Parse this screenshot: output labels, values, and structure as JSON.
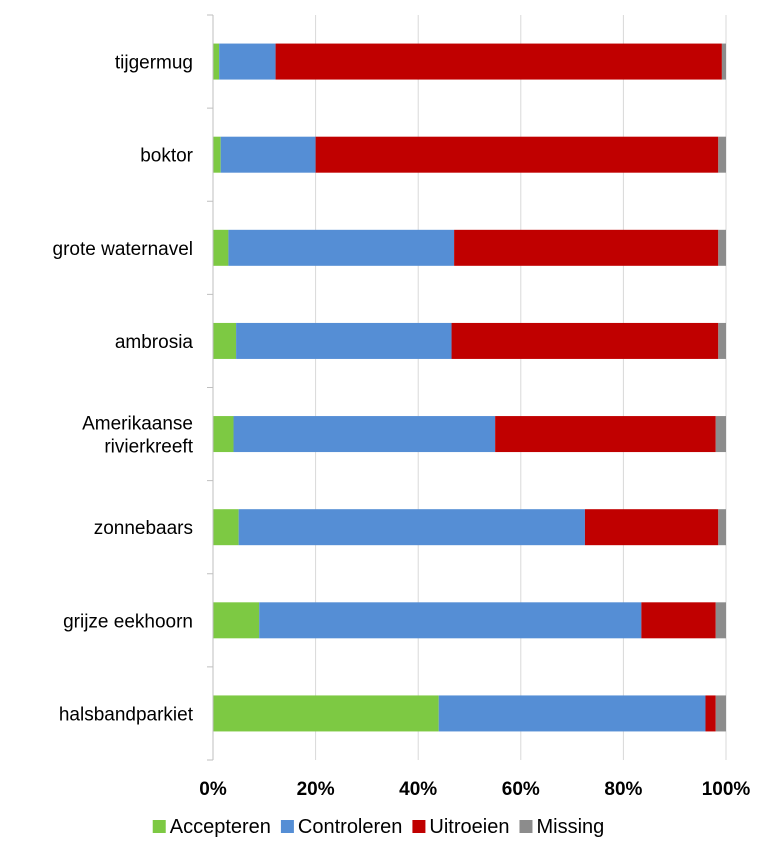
{
  "chart_data": {
    "type": "bar",
    "orientation": "horizontal",
    "stacked": true,
    "percent": true,
    "categories": [
      [
        "tijgermug"
      ],
      [
        "boktor"
      ],
      [
        "grote waternavel"
      ],
      [
        "ambrosia"
      ],
      [
        "Amerikaanse",
        "rivierkreeft"
      ],
      [
        "zonnebaars"
      ],
      [
        "grijze eekhoorn"
      ],
      [
        "halsbandparkiet"
      ]
    ],
    "series": [
      {
        "name": "Accepteren",
        "color": "#7dc943",
        "values": [
          1.2,
          1.5,
          3.0,
          4.5,
          4.0,
          5.0,
          9.0,
          44.0
        ]
      },
      {
        "name": "Controleren",
        "color": "#558ed5",
        "values": [
          11.0,
          18.5,
          44.0,
          42.0,
          51.0,
          67.5,
          74.5,
          52.0
        ]
      },
      {
        "name": "Uitroeien",
        "color": "#c00000",
        "values": [
          87.0,
          78.5,
          51.5,
          52.0,
          43.0,
          26.0,
          14.5,
          2.0
        ]
      },
      {
        "name": "Missing",
        "color": "#8c8c8c",
        "values": [
          0.8,
          1.5,
          1.5,
          1.5,
          2.0,
          1.5,
          2.0,
          2.0
        ]
      }
    ],
    "xlim": [
      0,
      100
    ],
    "xticks": [
      "0%",
      "20%",
      "40%",
      "60%",
      "80%",
      "100%"
    ],
    "grid": true,
    "legend_position": "bottom"
  }
}
